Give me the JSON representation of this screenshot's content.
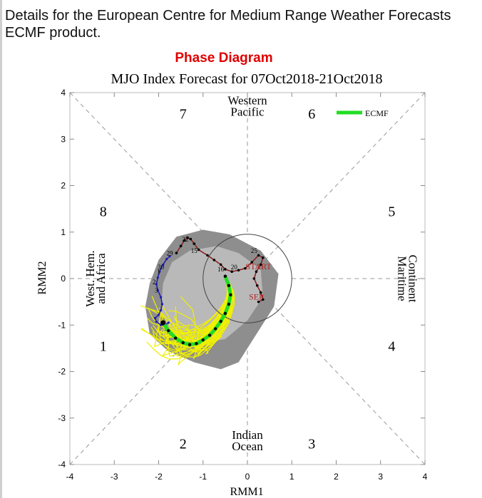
{
  "description": "Details for the European Centre for Medium Range Weather Forecasts ECMF product.",
  "chart_data": {
    "type": "scatter",
    "header": "Phase Diagram",
    "title": "MJO Index Forecast for 07Oct2018-21Oct2018",
    "xlabel": "RMM1",
    "ylabel": "RMM2",
    "xlim": [
      -4,
      4
    ],
    "ylim": [
      -4,
      4
    ],
    "xticks": [
      -4,
      -3,
      -2,
      -1,
      0,
      1,
      2,
      3,
      4
    ],
    "yticks": [
      -4,
      -3,
      -2,
      -1,
      0,
      1,
      2,
      3,
      4
    ],
    "legend": {
      "position": "top-right",
      "label": "ECMF",
      "color": "#22dd22"
    },
    "colors": {
      "ensemble": "#f0f000",
      "ecmf": "#22dd22",
      "observed": "#1b1bb0",
      "observed_late": "#8b1a1a",
      "plume_dark": "#8e8e8e",
      "plume_light": "#b9b9b9",
      "phase_text": "#000000",
      "month_label": "#b22222"
    },
    "phases": [
      {
        "id": 1,
        "label": "1",
        "x": -3.25,
        "y": -1.45
      },
      {
        "id": 2,
        "label": "2",
        "x": -1.45,
        "y": -3.55
      },
      {
        "id": 3,
        "label": "3",
        "x": 1.45,
        "y": -3.55
      },
      {
        "id": 4,
        "label": "4",
        "x": 3.25,
        "y": -1.45
      },
      {
        "id": 5,
        "label": "5",
        "x": 3.25,
        "y": 1.45
      },
      {
        "id": 6,
        "label": "6",
        "x": 1.45,
        "y": 3.55
      },
      {
        "id": 7,
        "label": "7",
        "x": -1.45,
        "y": 3.55
      },
      {
        "id": 8,
        "label": "8",
        "x": -3.25,
        "y": 1.45
      }
    ],
    "regions": {
      "top": [
        "Western",
        "Pacific"
      ],
      "bottom": [
        "Indian",
        "Ocean"
      ],
      "left": [
        "West. Hem.",
        "and Africa"
      ],
      "right": [
        "Maritime",
        "Continent"
      ]
    },
    "annotations": [
      {
        "text": "START",
        "x": 0.25,
        "y": 0.2
      },
      {
        "text": "SEP",
        "x": 0.2,
        "y": -0.45
      },
      {
        "text": "29",
        "x": -1.75,
        "y": 0.5
      },
      {
        "text": "30",
        "x": -1.95,
        "y": 0.2
      },
      {
        "text": "1",
        "x": -2.0,
        "y": 0.1
      },
      {
        "text": "2",
        "x": -2.1,
        "y": -0.12
      },
      {
        "text": "3",
        "x": -2.05,
        "y": -0.3
      },
      {
        "text": "22",
        "x": -1.4,
        "y": 0.8
      },
      {
        "text": "15",
        "x": -1.2,
        "y": 0.55
      },
      {
        "text": "16",
        "x": -0.6,
        "y": 0.15
      },
      {
        "text": "20",
        "x": -0.3,
        "y": 0.2
      },
      {
        "text": "25",
        "x": 0.15,
        "y": 0.55
      }
    ],
    "series": [
      {
        "name": "ECMF",
        "x": [
          -1.9,
          -1.78,
          -1.62,
          -1.45,
          -1.3,
          -1.15,
          -1.0,
          -0.85,
          -0.72,
          -0.6,
          -0.5,
          -0.42,
          -0.38,
          -0.42,
          -0.5
        ],
        "y": [
          -0.95,
          -1.12,
          -1.28,
          -1.38,
          -1.42,
          -1.4,
          -1.32,
          -1.22,
          -1.08,
          -0.92,
          -0.75,
          -0.55,
          -0.35,
          -0.15,
          0.05
        ]
      },
      {
        "name": "Observed",
        "x": [
          -1.75,
          -1.82,
          -1.9,
          -1.98,
          -2.02,
          -2.05,
          -2.02,
          -1.95,
          -1.92,
          -1.95,
          -2.0,
          -2.08,
          -2.05,
          -1.95,
          -1.85,
          -1.78
        ],
        "y": [
          0.48,
          0.42,
          0.3,
          0.15,
          0.02,
          -0.12,
          -0.25,
          -0.4,
          -0.55,
          -0.68,
          -0.78,
          -0.85,
          -0.93,
          -1.0,
          -1.0,
          -0.95
        ]
      },
      {
        "name": "Observed late",
        "x": [
          -1.6,
          -1.5,
          -1.42,
          -1.35,
          -1.28,
          -1.2,
          -1.1,
          -0.9,
          -0.75,
          -0.6,
          -0.5,
          -0.35,
          -0.2,
          -0.05,
          0.1,
          0.25,
          0.35,
          0.3,
          0.2,
          0.15,
          0.22,
          0.3,
          0.35,
          0.25
        ],
        "y": [
          0.55,
          0.7,
          0.82,
          0.88,
          0.85,
          0.75,
          0.62,
          0.5,
          0.4,
          0.3,
          0.2,
          0.15,
          0.18,
          0.22,
          0.35,
          0.5,
          0.45,
          0.3,
          0.15,
          0.0,
          -0.15,
          -0.3,
          -0.45,
          -0.5
        ]
      }
    ]
  }
}
